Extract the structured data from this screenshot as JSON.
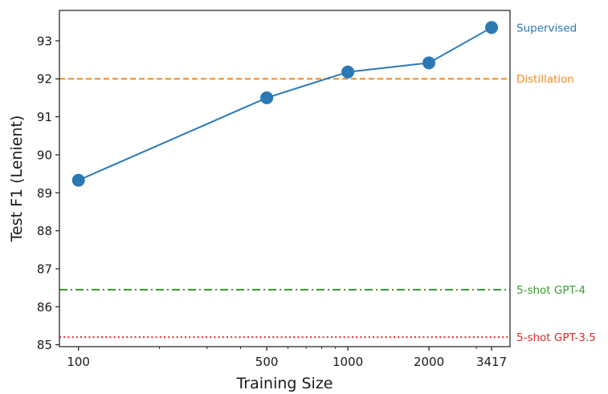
{
  "chart_data": {
    "type": "line",
    "xlabel": "Training Size",
    "ylabel": "Test F1 (Lenient)",
    "x_scale": "log",
    "xlim": [
      85,
      4000
    ],
    "ylim": [
      84.95,
      93.8
    ],
    "x_ticks": [
      100,
      500,
      1000,
      2000,
      3417
    ],
    "y_ticks": [
      85,
      86,
      87,
      88,
      89,
      90,
      91,
      92,
      93
    ],
    "grid": false,
    "series": [
      {
        "name": "Supervised",
        "x": [
          100,
          500,
          1000,
          2000,
          3417
        ],
        "y": [
          89.33,
          91.5,
          92.18,
          92.42,
          93.35
        ],
        "color": "#2a78b4",
        "marker": "circle"
      }
    ],
    "reference_lines": [
      {
        "name": "Distillation",
        "y": 92.0,
        "color": "#f28a1c",
        "style": "dashed"
      },
      {
        "name": "5-shot GPT-4",
        "y": 86.45,
        "color": "#3a9b35",
        "style": "dashdot"
      },
      {
        "name": "5-shot GPT-3.5",
        "y": 85.2,
        "color": "#d62d2b",
        "style": "dotted"
      }
    ]
  }
}
